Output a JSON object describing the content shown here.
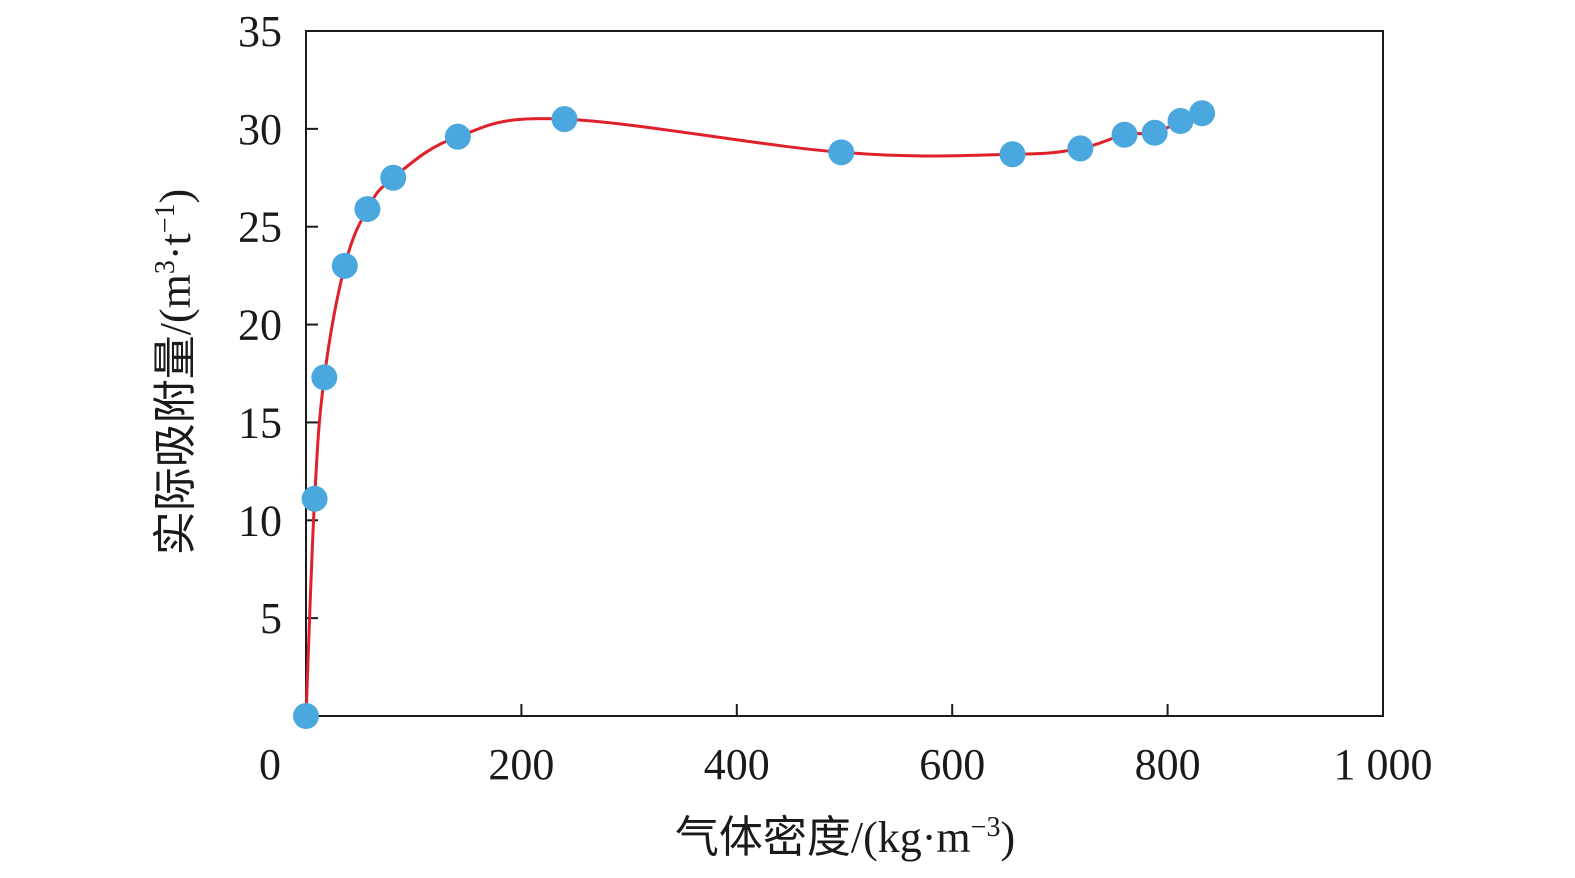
{
  "chart_data": {
    "type": "line",
    "x_axis": {
      "title": "气体密度/(kg·m",
      "title_sup": "−3",
      "title_end": ")",
      "range": [
        0,
        1000
      ],
      "ticks": [
        0,
        200,
        400,
        600,
        800,
        1000
      ],
      "tick_labels": [
        "0",
        "200",
        "400",
        "600",
        "800",
        "1 000"
      ]
    },
    "y_axis": {
      "title": "实际吸附量/(m",
      "title_sup1": "3",
      "title_mid": "·t",
      "title_sup2": "−1",
      "title_end": ")",
      "range": [
        0,
        35
      ],
      "ticks": [
        5,
        10,
        15,
        20,
        25,
        30,
        35
      ],
      "tick_labels": [
        "5",
        "10",
        "15",
        "20",
        "25",
        "30",
        "35"
      ]
    },
    "grid": false,
    "legend": "none",
    "series": [
      {
        "line_color": "#e0202a",
        "marker_color": "#4aa8de",
        "points": [
          {
            "x": 0,
            "y": 0
          },
          {
            "x": 8,
            "y": 11.1
          },
          {
            "x": 17,
            "y": 17.3
          },
          {
            "x": 36,
            "y": 23.0
          },
          {
            "x": 57,
            "y": 25.9
          },
          {
            "x": 81,
            "y": 27.5
          },
          {
            "x": 141,
            "y": 29.6
          },
          {
            "x": 240,
            "y": 30.5
          },
          {
            "x": 497,
            "y": 28.8
          },
          {
            "x": 656,
            "y": 28.7
          },
          {
            "x": 719,
            "y": 29.0
          },
          {
            "x": 760,
            "y": 29.7
          },
          {
            "x": 788,
            "y": 29.8
          },
          {
            "x": 812,
            "y": 30.4
          },
          {
            "x": 832,
            "y": 30.8
          }
        ]
      }
    ]
  }
}
